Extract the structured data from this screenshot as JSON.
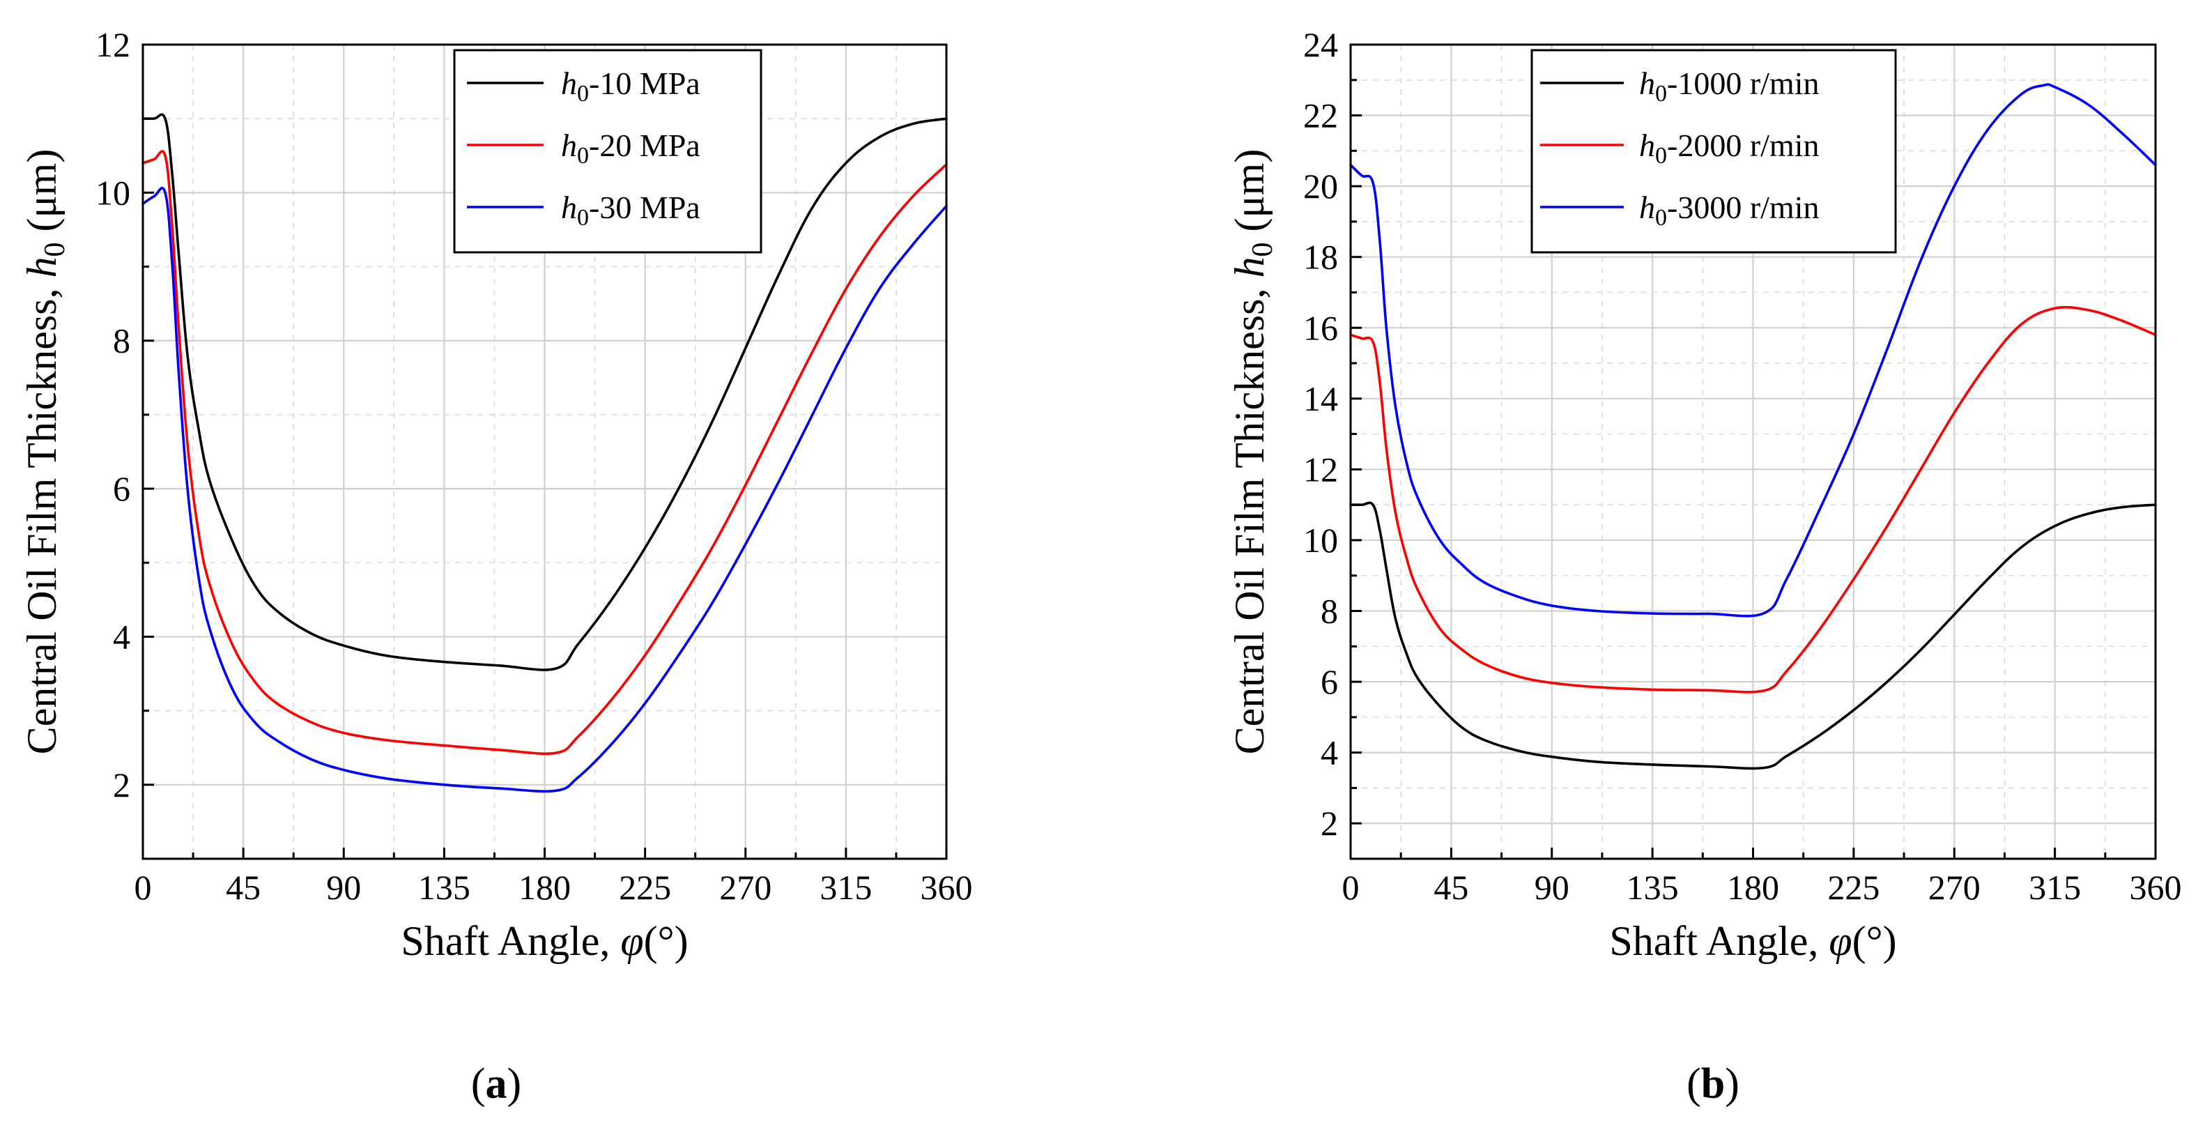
{
  "chart_data": [
    {
      "panel": "(a)",
      "type": "line",
      "xlabel": "Shaft Angle, φ(°)",
      "ylabel": "Central Oil Film Thickness, h0 (μm)",
      "xlim": [
        0,
        360
      ],
      "ylim": [
        1,
        12
      ],
      "xticks": [
        0,
        45,
        90,
        135,
        180,
        225,
        270,
        315,
        360
      ],
      "yticks": [
        2,
        4,
        6,
        8,
        10,
        12
      ],
      "grid": true,
      "legend_placement": "top-right",
      "series": [
        {
          "name": "h0-10 MPa",
          "name_main": "h",
          "name_sub": "0",
          "name_rest": "-10 MPa",
          "color": "#000000",
          "x": [
            0,
            5,
            10,
            13,
            16,
            20,
            25,
            30,
            40,
            50,
            60,
            75,
            90,
            110,
            135,
            160,
            185,
            195,
            210,
            225,
            240,
            255,
            270,
            285,
            300,
            315,
            330,
            345,
            360
          ],
          "y": [
            11.0,
            11.0,
            11.0,
            10.3,
            9.2,
            7.8,
            6.8,
            6.1,
            5.3,
            4.7,
            4.35,
            4.05,
            3.88,
            3.74,
            3.66,
            3.61,
            3.57,
            3.9,
            4.5,
            5.2,
            6.0,
            6.9,
            7.9,
            8.9,
            9.8,
            10.4,
            10.75,
            10.93,
            11.0
          ]
        },
        {
          "name": "h0-20 MPa",
          "name_main": "h",
          "name_sub": "0",
          "name_rest": "-20 MPa",
          "color": "#ff0000",
          "x": [
            0,
            5,
            10,
            13,
            16,
            20,
            25,
            30,
            40,
            50,
            60,
            75,
            90,
            110,
            135,
            160,
            185,
            195,
            210,
            225,
            240,
            255,
            270,
            285,
            300,
            315,
            330,
            345,
            360
          ],
          "y": [
            10.4,
            10.45,
            10.5,
            9.6,
            8.2,
            6.6,
            5.4,
            4.7,
            3.9,
            3.4,
            3.1,
            2.85,
            2.7,
            2.6,
            2.53,
            2.47,
            2.43,
            2.65,
            3.15,
            3.75,
            4.45,
            5.2,
            6.05,
            6.95,
            7.85,
            8.7,
            9.4,
            9.95,
            10.38
          ]
        },
        {
          "name": "h0-30 MPa",
          "name_main": "h",
          "name_sub": "0",
          "name_rest": "-30 MPa",
          "color": "#0000ff",
          "x": [
            0,
            5,
            10,
            13,
            16,
            20,
            25,
            30,
            40,
            50,
            60,
            75,
            90,
            110,
            135,
            160,
            185,
            195,
            210,
            225,
            240,
            255,
            270,
            285,
            300,
            315,
            330,
            345,
            360
          ],
          "y": [
            9.85,
            9.95,
            10.0,
            9.1,
            7.6,
            6.0,
            4.8,
            4.1,
            3.3,
            2.85,
            2.6,
            2.35,
            2.2,
            2.08,
            2.0,
            1.95,
            1.92,
            2.1,
            2.55,
            3.1,
            3.75,
            4.45,
            5.25,
            6.1,
            7.0,
            7.9,
            8.7,
            9.3,
            9.82
          ]
        }
      ]
    },
    {
      "panel": "(b)",
      "type": "line",
      "xlabel": "Shaft Angle, φ(°)",
      "ylabel": "Central Oil Film Thickness, h0 (μm)",
      "xlim": [
        0,
        360
      ],
      "ylim": [
        1,
        24
      ],
      "xticks": [
        0,
        45,
        90,
        135,
        180,
        225,
        270,
        315,
        360
      ],
      "yticks": [
        2,
        4,
        6,
        8,
        10,
        12,
        14,
        16,
        18,
        20,
        22,
        24
      ],
      "grid": true,
      "legend_placement": "top-left",
      "series": [
        {
          "name": "h0-1000 r/min",
          "name_main": "h",
          "name_sub": "0",
          "name_rest": "-1000 r/min",
          "color": "#000000",
          "x": [
            0,
            5,
            10,
            13,
            16,
            20,
            25,
            30,
            40,
            50,
            60,
            75,
            90,
            110,
            135,
            160,
            185,
            195,
            210,
            225,
            240,
            255,
            270,
            285,
            300,
            315,
            330,
            345,
            360
          ],
          "y": [
            11.0,
            11.0,
            11.0,
            10.3,
            9.2,
            7.8,
            6.8,
            6.1,
            5.3,
            4.7,
            4.35,
            4.05,
            3.88,
            3.74,
            3.66,
            3.61,
            3.57,
            3.9,
            4.5,
            5.2,
            6.0,
            6.9,
            7.9,
            8.9,
            9.8,
            10.4,
            10.75,
            10.93,
            11.0
          ]
        },
        {
          "name": "h0-2000 r/min",
          "name_main": "h",
          "name_sub": "0",
          "name_rest": "-2000 r/min",
          "color": "#ff0000",
          "x": [
            0,
            5,
            10,
            13,
            16,
            20,
            25,
            30,
            40,
            50,
            60,
            75,
            90,
            110,
            135,
            160,
            185,
            195,
            210,
            225,
            240,
            255,
            270,
            285,
            300,
            315,
            330,
            345,
            360
          ],
          "y": [
            15.8,
            15.7,
            15.6,
            14.5,
            12.6,
            10.8,
            9.5,
            8.6,
            7.5,
            6.9,
            6.5,
            6.15,
            5.97,
            5.85,
            5.78,
            5.76,
            5.75,
            6.3,
            7.5,
            8.9,
            10.4,
            12.0,
            13.6,
            15.0,
            16.1,
            16.55,
            16.5,
            16.2,
            15.8
          ]
        },
        {
          "name": "h0-3000 r/min",
          "name_main": "h",
          "name_sub": "0",
          "name_rest": "-3000 r/min",
          "color": "#0000ff",
          "x": [
            0,
            5,
            10,
            13,
            16,
            20,
            25,
            30,
            40,
            50,
            60,
            75,
            90,
            110,
            135,
            160,
            185,
            195,
            210,
            225,
            240,
            255,
            270,
            285,
            300,
            310,
            315,
            330,
            345,
            360
          ],
          "y": [
            20.6,
            20.3,
            20.1,
            18.5,
            16.0,
            13.8,
            12.2,
            11.2,
            10.0,
            9.3,
            8.8,
            8.4,
            8.15,
            8.0,
            7.93,
            7.92,
            7.94,
            8.9,
            10.9,
            13.0,
            15.4,
            17.9,
            20.0,
            21.6,
            22.6,
            22.85,
            22.8,
            22.3,
            21.5,
            20.6
          ]
        }
      ]
    }
  ]
}
